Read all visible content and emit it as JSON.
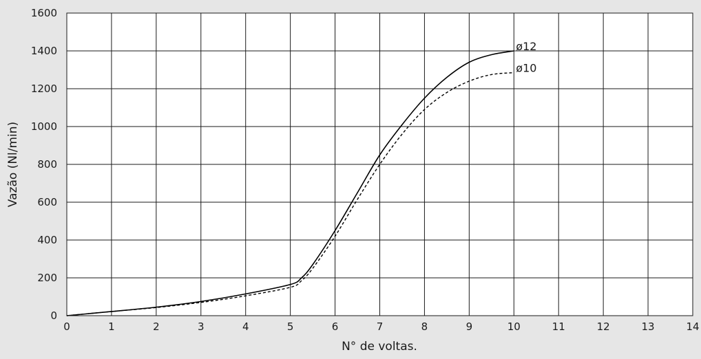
{
  "chart_data": {
    "type": "line",
    "xlabel": "N° de voltas.",
    "ylabel": "Vazão (Nl/min)",
    "xlim": [
      0,
      14
    ],
    "ylim": [
      0,
      1600
    ],
    "xticks": [
      0,
      1,
      2,
      3,
      4,
      5,
      6,
      7,
      8,
      9,
      10,
      11,
      12,
      13,
      14
    ],
    "yticks": [
      0,
      200,
      400,
      600,
      800,
      1000,
      1200,
      1400,
      1600
    ],
    "grid": true,
    "background": "#e6e6e6",
    "plot_background": "#ffffff",
    "line_color": "#000000",
    "series": [
      {
        "name": "ø12",
        "line_style": "solid",
        "x": [
          0,
          1,
          2,
          3,
          4,
          5,
          5.25,
          5.5,
          6,
          6.5,
          7,
          7.5,
          8,
          8.5,
          9,
          9.5,
          10
        ],
        "y": [
          0,
          22,
          45,
          75,
          115,
          165,
          200,
          270,
          450,
          650,
          850,
          1010,
          1150,
          1260,
          1340,
          1380,
          1400
        ]
      },
      {
        "name": "ø10",
        "line_style": "dashed",
        "x": [
          0,
          1,
          2,
          3,
          4,
          5,
          5.25,
          5.5,
          6,
          6.5,
          7,
          7.5,
          8,
          8.5,
          9,
          9.5,
          10
        ],
        "y": [
          0,
          22,
          43,
          70,
          105,
          150,
          185,
          250,
          420,
          615,
          800,
          960,
          1090,
          1180,
          1240,
          1275,
          1285
        ]
      }
    ]
  }
}
